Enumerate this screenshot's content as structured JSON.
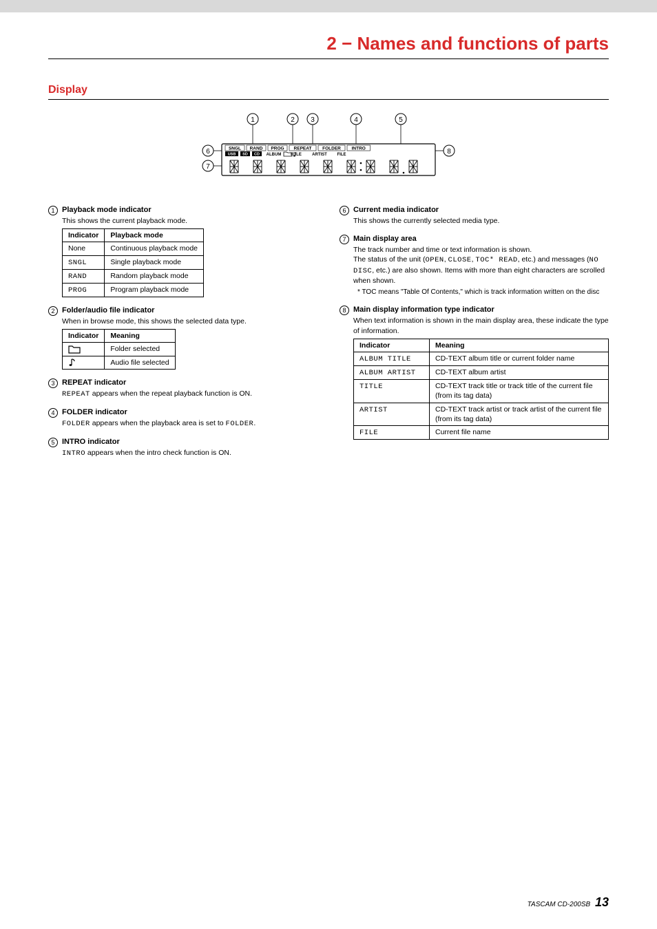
{
  "chapter_title": "2 − Names and functions of parts",
  "section_title": "Display",
  "diagram": {
    "callouts": [
      "1",
      "2",
      "3",
      "4",
      "5",
      "6",
      "7",
      "8"
    ],
    "indicators_top": [
      "SNGL",
      "RAND",
      "PROG",
      "REPEAT",
      "FOLDER",
      "INTRO"
    ],
    "indicators_mid": [
      "USB",
      "SD",
      "CD",
      "ALBUM",
      "TITLE",
      "ARTIST",
      "FILE"
    ],
    "callout_color": "#000000",
    "display_bg": "#ffffff",
    "display_border": "#000000"
  },
  "left": [
    {
      "num": "1",
      "title": "Playback mode indicator",
      "body": [
        "This shows the current playback mode."
      ],
      "table": {
        "headers": [
          "Indicator",
          "Playback mode"
        ],
        "rows": [
          [
            "None",
            "Continuous playback mode"
          ],
          [
            "SNGL",
            "Single playback mode"
          ],
          [
            "RAND",
            "Random playback mode"
          ],
          [
            "PROG",
            "Program playback mode"
          ]
        ],
        "mono_col": 0,
        "mono_skip_first": true
      }
    },
    {
      "num": "2",
      "title": "Folder/audio file indicator",
      "body": [
        "When in browse mode, this shows the selected data type."
      ],
      "table": {
        "headers": [
          "Indicator",
          "Meaning"
        ],
        "rows": [
          [
            "__FOLDER_ICON__",
            "Folder selected"
          ],
          [
            "__NOTE_ICON__",
            "Audio file selected"
          ]
        ]
      }
    },
    {
      "num": "3",
      "title": "REPEAT indicator",
      "body_html": "<span class='mono'>REPEAT</span> appears when the repeat playback function is ON."
    },
    {
      "num": "4",
      "title": "FOLDER indicator",
      "body_html": "<span class='mono'>FOLDER</span> appears when the playback area is set to <span class='mono'>FOLDER</span>."
    },
    {
      "num": "5",
      "title": "INTRO indicator",
      "body_html": "<span class='mono'>INTRO</span> appears when the intro check function is ON."
    }
  ],
  "right": [
    {
      "num": "6",
      "title": "Current media indicator",
      "body": [
        "This shows the currently selected media type."
      ]
    },
    {
      "num": "7",
      "title": "Main display area",
      "body_html": "The track number and time or text information is shown.<br>The status of the unit (<span class='mono'>OPEN</span>, <span class='mono'>CLOSE</span>, <span class='mono'>TOC* READ</span>, etc.) and messages (<span class='mono'>NO DISC</span>, etc.) are also shown. Items with more than eight characters are scrolled when shown.",
      "note": "* TOC means \"Table Of Contents,\" which is track information written on the disc"
    },
    {
      "num": "8",
      "title": "Main display information type indicator",
      "body": [
        "When text information is shown in the main display area, these indicate the type of information."
      ],
      "table": {
        "headers": [
          "Indicator",
          "Meaning"
        ],
        "col_widths": [
          "110px",
          "auto"
        ],
        "rows": [
          [
            "ALBUM TITLE",
            "CD-TEXT album title or current folder name"
          ],
          [
            "ALBUM ARTIST",
            "CD-TEXT album artist"
          ],
          [
            "TITLE",
            "CD-TEXT track title or track title of the current file (from its tag data)"
          ],
          [
            "ARTIST",
            "CD-TEXT track artist or track artist of the current file (from its tag data)"
          ],
          [
            "FILE",
            "Current file name"
          ]
        ],
        "mono_col": 0
      }
    }
  ],
  "footer": {
    "model": "TASCAM  CD-200SB",
    "page": "13"
  }
}
